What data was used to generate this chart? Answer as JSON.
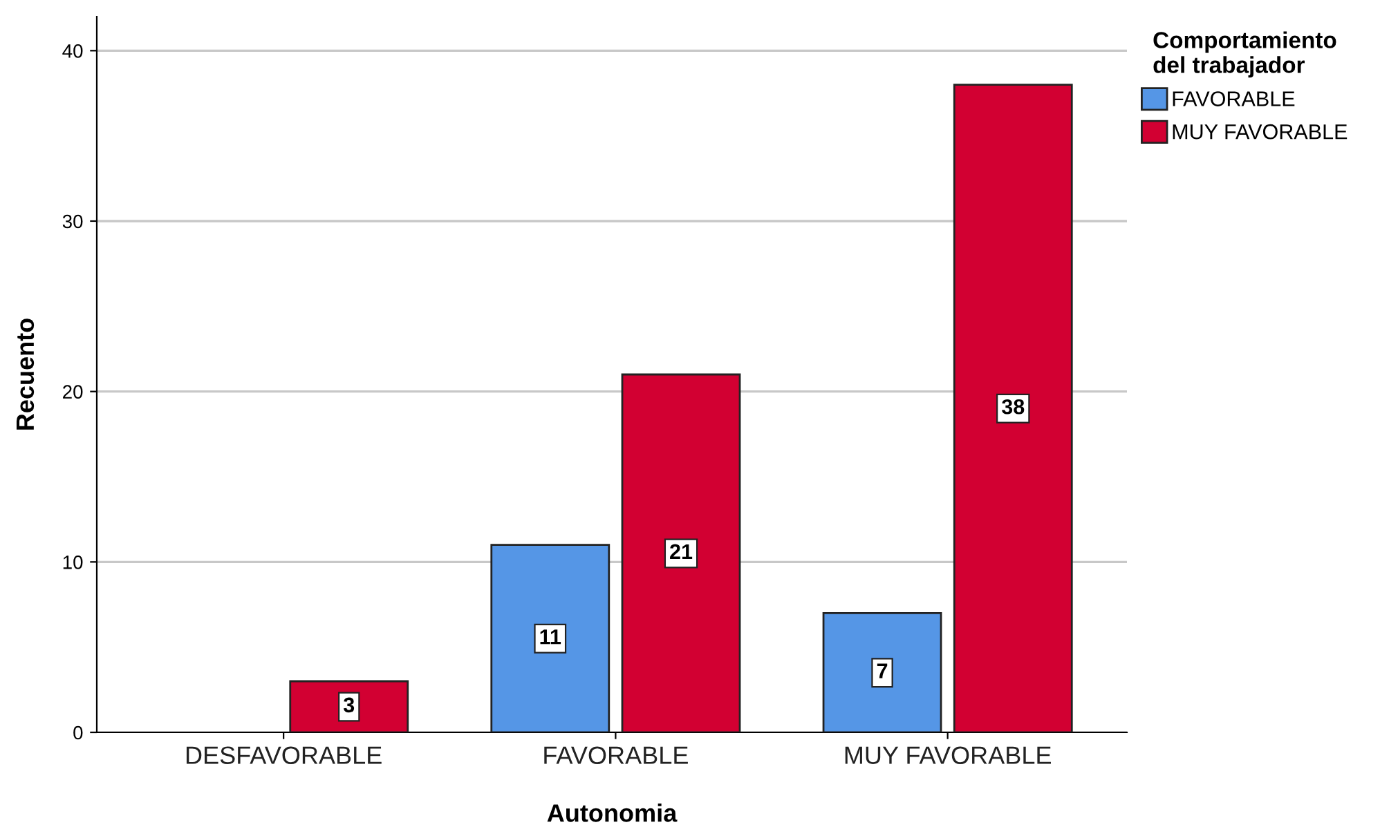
{
  "chart_data": {
    "type": "bar",
    "xlabel": "Autonomia",
    "ylabel": "Recuento",
    "legend_title": "Comportamiento\ndel trabajador",
    "categories": [
      "DESFAVORABLE",
      "FAVORABLE",
      "MUY FAVORABLE"
    ],
    "series": [
      {
        "name": "FAVORABLE",
        "color": "#5596e6",
        "values": [
          null,
          11,
          7
        ]
      },
      {
        "name": "MUY FAVORABLE",
        "color": "#d20032",
        "values": [
          3,
          21,
          38
        ]
      }
    ],
    "ylim": [
      0,
      42
    ],
    "yticks": [
      0,
      10,
      20,
      30,
      40
    ],
    "grid": "y",
    "legend": "top right",
    "data_labels": true
  }
}
